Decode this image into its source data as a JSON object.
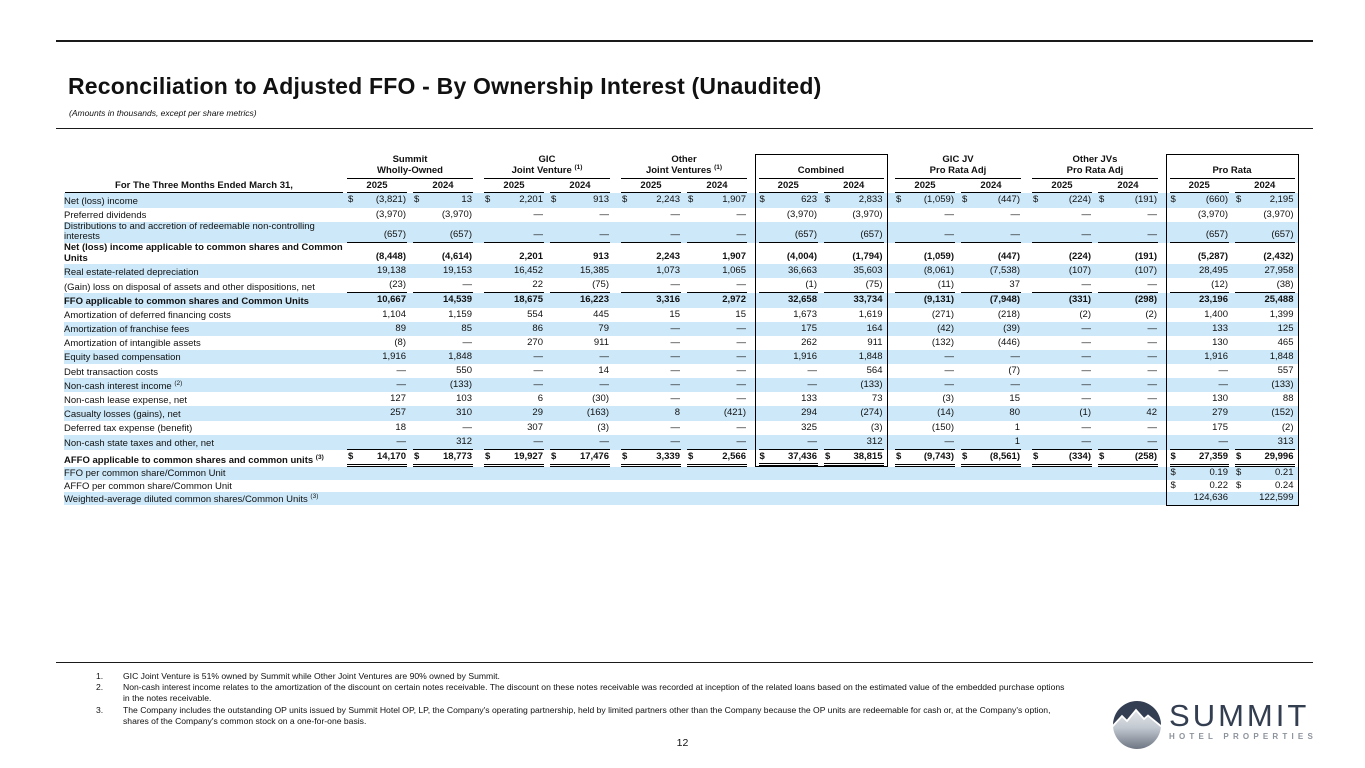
{
  "page": {
    "title": "Reconciliation to Adjusted FFO - By Ownership Interest (Unaudited)",
    "subtitle": "(Amounts in thousands, except per share metrics)",
    "page_number": "12"
  },
  "colors": {
    "row_highlight": "#cde8f8",
    "logo_navy": "#333e50",
    "logo_gray": "#8d939c"
  },
  "table": {
    "period_label": "For The Three Months Ended March 31,",
    "years": [
      "2025",
      "2024"
    ],
    "groups": [
      {
        "line1": "Summit",
        "line2": "Wholly-Owned",
        "sup": "",
        "boxed": false
      },
      {
        "line1": "GIC",
        "line2": "Joint Venture",
        "sup": "(1)",
        "boxed": false
      },
      {
        "line1": "Other",
        "line2": "Joint Ventures",
        "sup": "(1)",
        "boxed": false
      },
      {
        "line1": "",
        "line2": "Combined",
        "sup": "",
        "boxed": true
      },
      {
        "line1": "GIC JV",
        "line2": "Pro Rata Adj",
        "sup": "",
        "boxed": false
      },
      {
        "line1": "Other JVs",
        "line2": "Pro Rata Adj",
        "sup": "",
        "boxed": false
      },
      {
        "line1": "",
        "line2": "Pro Rata",
        "sup": "",
        "boxed": true
      }
    ],
    "rows": [
      {
        "label": "Net (loss) income",
        "sup": "",
        "bold": false,
        "shaded": true,
        "dollar": "all",
        "rule": "none",
        "tall": false,
        "cells": [
          "(3,821)",
          "13",
          "2,201",
          "913",
          "2,243",
          "1,907",
          "623",
          "2,833",
          "(1,059)",
          "(447)",
          "(224)",
          "(191)",
          "(660)",
          "2,195"
        ]
      },
      {
        "label": "Preferred dividends",
        "sup": "",
        "bold": false,
        "shaded": false,
        "dollar": "none",
        "rule": "none",
        "tall": false,
        "cells": [
          "(3,970)",
          "(3,970)",
          "—",
          "—",
          "—",
          "—",
          "(3,970)",
          "(3,970)",
          "—",
          "—",
          "—",
          "—",
          "(3,970)",
          "(3,970)"
        ]
      },
      {
        "label": "Distributions to and accretion of redeemable non-controlling interests",
        "sup": "",
        "bold": false,
        "shaded": true,
        "dollar": "none",
        "rule": "single",
        "tall": false,
        "cells": [
          "(657)",
          "(657)",
          "—",
          "—",
          "—",
          "—",
          "(657)",
          "(657)",
          "—",
          "—",
          "—",
          "—",
          "(657)",
          "(657)"
        ]
      },
      {
        "label": "Net (loss) income applicable to common shares and Common Units",
        "sup": "",
        "bold": true,
        "shaded": false,
        "dollar": "none",
        "rule": "none",
        "tall": false,
        "cells": [
          "(8,448)",
          "(4,614)",
          "2,201",
          "913",
          "2,243",
          "1,907",
          "(4,004)",
          "(1,794)",
          "(1,059)",
          "(447)",
          "(224)",
          "(191)",
          "(5,287)",
          "(2,432)"
        ]
      },
      {
        "label": "Real estate-related depreciation",
        "sup": "",
        "bold": false,
        "shaded": true,
        "dollar": "none",
        "rule": "none",
        "tall": false,
        "cells": [
          "19,138",
          "19,153",
          "16,452",
          "15,385",
          "1,073",
          "1,065",
          "36,663",
          "35,603",
          "(8,061)",
          "(7,538)",
          "(107)",
          "(107)",
          "28,495",
          "27,958"
        ]
      },
      {
        "label": "(Gain) loss on disposal of assets and other dispositions, net",
        "sup": "",
        "bold": false,
        "shaded": false,
        "dollar": "none",
        "rule": "single",
        "tall": false,
        "cells": [
          "(23)",
          "—",
          "22",
          "(75)",
          "—",
          "—",
          "(1)",
          "(75)",
          "(11)",
          "37",
          "—",
          "—",
          "(12)",
          "(38)"
        ]
      },
      {
        "label": "FFO applicable to common shares and Common Units",
        "sup": "",
        "bold": true,
        "shaded": true,
        "dollar": "none",
        "rule": "none",
        "tall": false,
        "cells": [
          "10,667",
          "14,539",
          "18,675",
          "16,223",
          "3,316",
          "2,972",
          "32,658",
          "33,734",
          "(9,131)",
          "(7,948)",
          "(331)",
          "(298)",
          "23,196",
          "25,488"
        ]
      },
      {
        "label": "Amortization of deferred financing costs",
        "sup": "",
        "bold": false,
        "shaded": false,
        "dollar": "none",
        "rule": "none",
        "tall": false,
        "cells": [
          "1,104",
          "1,159",
          "554",
          "445",
          "15",
          "15",
          "1,673",
          "1,619",
          "(271)",
          "(218)",
          "(2)",
          "(2)",
          "1,400",
          "1,399"
        ]
      },
      {
        "label": "Amortization of franchise fees",
        "sup": "",
        "bold": false,
        "shaded": true,
        "dollar": "none",
        "rule": "none",
        "tall": false,
        "cells": [
          "89",
          "85",
          "86",
          "79",
          "—",
          "—",
          "175",
          "164",
          "(42)",
          "(39)",
          "—",
          "—",
          "133",
          "125"
        ]
      },
      {
        "label": "Amortization of intangible assets",
        "sup": "",
        "bold": false,
        "shaded": false,
        "dollar": "none",
        "rule": "none",
        "tall": false,
        "cells": [
          "(8)",
          "—",
          "270",
          "911",
          "—",
          "—",
          "262",
          "911",
          "(132)",
          "(446)",
          "—",
          "—",
          "130",
          "465"
        ]
      },
      {
        "label": "Equity based compensation",
        "sup": "",
        "bold": false,
        "shaded": true,
        "dollar": "none",
        "rule": "none",
        "tall": false,
        "cells": [
          "1,916",
          "1,848",
          "—",
          "—",
          "—",
          "—",
          "1,916",
          "1,848",
          "—",
          "—",
          "—",
          "—",
          "1,916",
          "1,848"
        ]
      },
      {
        "label": "Debt transaction costs",
        "sup": "",
        "bold": false,
        "shaded": false,
        "dollar": "none",
        "rule": "none",
        "tall": false,
        "cells": [
          "—",
          "550",
          "—",
          "14",
          "—",
          "—",
          "—",
          "564",
          "—",
          "(7)",
          "—",
          "—",
          "—",
          "557"
        ]
      },
      {
        "label": "Non-cash interest income",
        "sup": "(2)",
        "bold": false,
        "shaded": true,
        "dollar": "none",
        "rule": "none",
        "tall": false,
        "cells": [
          "—",
          "(133)",
          "—",
          "—",
          "—",
          "—",
          "—",
          "(133)",
          "—",
          "—",
          "—",
          "—",
          "—",
          "(133)"
        ]
      },
      {
        "label": "Non-cash lease expense, net",
        "sup": "",
        "bold": false,
        "shaded": false,
        "dollar": "none",
        "rule": "none",
        "tall": false,
        "cells": [
          "127",
          "103",
          "6",
          "(30)",
          "—",
          "—",
          "133",
          "73",
          "(3)",
          "15",
          "—",
          "—",
          "130",
          "88"
        ]
      },
      {
        "label": "Casualty losses (gains), net",
        "sup": "",
        "bold": false,
        "shaded": true,
        "dollar": "none",
        "rule": "none",
        "tall": false,
        "cells": [
          "257",
          "310",
          "29",
          "(163)",
          "8",
          "(421)",
          "294",
          "(274)",
          "(14)",
          "80",
          "(1)",
          "42",
          "279",
          "(152)"
        ]
      },
      {
        "label": "Deferred tax expense (benefit)",
        "sup": "",
        "bold": false,
        "shaded": false,
        "dollar": "none",
        "rule": "none",
        "tall": false,
        "cells": [
          "18",
          "—",
          "307",
          "(3)",
          "—",
          "—",
          "325",
          "(3)",
          "(150)",
          "1",
          "—",
          "—",
          "175",
          "(2)"
        ]
      },
      {
        "label": "Non-cash state taxes and other, net",
        "sup": "",
        "bold": false,
        "shaded": true,
        "dollar": "none",
        "rule": "single",
        "tall": false,
        "cells": [
          "—",
          "312",
          "—",
          "—",
          "—",
          "—",
          "—",
          "312",
          "—",
          "1",
          "—",
          "—",
          "—",
          "313"
        ]
      },
      {
        "label": "AFFO applicable to common shares and common units",
        "sup": "(3)",
        "bold": true,
        "shaded": false,
        "dollar": "all",
        "rule": "double",
        "tall": false,
        "cells": [
          "14,170",
          "18,773",
          "19,927",
          "17,476",
          "3,339",
          "2,566",
          "37,436",
          "38,815",
          "(9,743)",
          "(8,561)",
          "(334)",
          "(258)",
          "27,359",
          "29,996"
        ]
      },
      {
        "label": "FFO per common share/Common Unit",
        "sup": "",
        "bold": false,
        "shaded": true,
        "dollar": "pr",
        "rule": "none",
        "tall": true,
        "cells": [
          "",
          "",
          "",
          "",
          "",
          "",
          "",
          "",
          "",
          "",
          "",
          "",
          "0.19",
          "0.21"
        ]
      },
      {
        "label": "AFFO per common share/Common Unit",
        "sup": "",
        "bold": false,
        "shaded": false,
        "dollar": "pr",
        "rule": "none",
        "tall": true,
        "cells": [
          "",
          "",
          "",
          "",
          "",
          "",
          "",
          "",
          "",
          "",
          "",
          "",
          "0.22",
          "0.24"
        ]
      },
      {
        "label": "Weighted-average diluted common shares/Common Units",
        "sup": "(3)",
        "bold": false,
        "shaded": true,
        "dollar": "none",
        "rule": "none",
        "tall": true,
        "cells": [
          "",
          "",
          "",
          "",
          "",
          "",
          "",
          "",
          "",
          "",
          "",
          "",
          "124,636",
          "122,599"
        ]
      }
    ]
  },
  "footnotes": [
    {
      "num": "1.",
      "text": "GIC Joint Venture is 51% owned by Summit while Other Joint Ventures are 90% owned by Summit."
    },
    {
      "num": "2.",
      "text": "Non-cash interest income relates to the amortization of the discount on certain notes receivable. The discount on these notes receivable was recorded at inception of the related loans based on the estimated value of the embedded purchase options in the notes receivable."
    },
    {
      "num": "3.",
      "text": "The Company includes the outstanding OP units issued by Summit Hotel OP, LP, the Company's operating partnership, held by limited partners other than the Company because the OP units are redeemable for cash or, at the Company's option, shares of the Company's common stock on a one-for-one basis."
    }
  ],
  "logo": {
    "name": "SUMMIT",
    "tagline": "HOTEL PROPERTIES"
  }
}
